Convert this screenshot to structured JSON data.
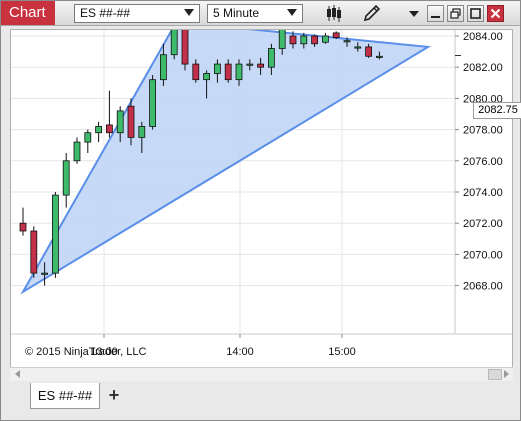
{
  "window": {
    "title": "Chart",
    "instrument_selector": {
      "value": "ES ##-##"
    },
    "interval_selector": {
      "value": "5 Minute"
    },
    "toolbar": {
      "bar_type_icon": "candlestick-icon",
      "drawing_tool_icon": "pencil-icon",
      "menu_icon": "chevron-down-icon"
    },
    "window_controls": [
      "minimize-icon",
      "restore-icon",
      "maximize-icon",
      "close-icon"
    ]
  },
  "chart": {
    "copyright": "© 2015 NinjaTrader, LLC",
    "current_price": "2082.75",
    "colors": {
      "up": "#3dbb6b",
      "down": "#c2304a",
      "triangle_fill": "#bcd3f7",
      "triangle_stroke": "#5a8ee8",
      "accent": "#c8323e"
    }
  },
  "chart_data": {
    "type": "candlestick",
    "y_ticks": [
      "2084.00",
      "2082.00",
      "2080.00",
      "2078.00",
      "2076.00",
      "2074.00",
      "2072.00",
      "2070.00",
      "2068.00"
    ],
    "ylim": [
      2067.5,
      2085.0
    ],
    "x_ticks": [
      "13:00",
      "14:00",
      "15:00"
    ],
    "candles": [
      {
        "o": 2072.0,
        "h": 2073.0,
        "l": 2071.2,
        "c": 2071.5
      },
      {
        "o": 2071.5,
        "h": 2071.8,
        "l": 2068.5,
        "c": 2068.8
      },
      {
        "o": 2068.8,
        "h": 2069.5,
        "l": 2068.0,
        "c": 2068.8
      },
      {
        "o": 2068.8,
        "h": 2074.0,
        "l": 2068.5,
        "c": 2073.8
      },
      {
        "o": 2073.8,
        "h": 2076.5,
        "l": 2073.0,
        "c": 2076.0
      },
      {
        "o": 2076.0,
        "h": 2077.5,
        "l": 2075.8,
        "c": 2077.2
      },
      {
        "o": 2077.2,
        "h": 2078.0,
        "l": 2076.5,
        "c": 2077.8
      },
      {
        "o": 2077.8,
        "h": 2078.5,
        "l": 2077.2,
        "c": 2078.2
      },
      {
        "o": 2078.3,
        "h": 2080.5,
        "l": 2077.5,
        "c": 2077.8
      },
      {
        "o": 2077.8,
        "h": 2079.5,
        "l": 2077.2,
        "c": 2079.2
      },
      {
        "o": 2079.5,
        "h": 2080.0,
        "l": 2077.0,
        "c": 2077.5
      },
      {
        "o": 2077.5,
        "h": 2078.5,
        "l": 2076.5,
        "c": 2078.2
      },
      {
        "o": 2078.2,
        "h": 2081.5,
        "l": 2078.0,
        "c": 2081.2
      },
      {
        "o": 2081.2,
        "h": 2083.5,
        "l": 2080.8,
        "c": 2082.8
      },
      {
        "o": 2082.8,
        "h": 2085.0,
        "l": 2082.5,
        "c": 2084.8
      },
      {
        "o": 2084.5,
        "h": 2084.8,
        "l": 2081.8,
        "c": 2082.2
      },
      {
        "o": 2082.2,
        "h": 2082.5,
        "l": 2081.0,
        "c": 2081.2
      },
      {
        "o": 2081.2,
        "h": 2081.8,
        "l": 2080.0,
        "c": 2081.6
      },
      {
        "o": 2081.6,
        "h": 2082.5,
        "l": 2081.0,
        "c": 2082.2
      },
      {
        "o": 2082.2,
        "h": 2082.5,
        "l": 2081.0,
        "c": 2081.2
      },
      {
        "o": 2081.2,
        "h": 2082.5,
        "l": 2080.8,
        "c": 2082.2
      },
      {
        "o": 2082.2,
        "h": 2082.5,
        "l": 2081.8,
        "c": 2082.2
      },
      {
        "o": 2082.2,
        "h": 2082.6,
        "l": 2081.5,
        "c": 2082.0
      },
      {
        "o": 2082.0,
        "h": 2083.5,
        "l": 2081.5,
        "c": 2083.2
      },
      {
        "o": 2083.2,
        "h": 2085.0,
        "l": 2082.8,
        "c": 2084.8
      },
      {
        "o": 2084.0,
        "h": 2084.3,
        "l": 2083.2,
        "c": 2083.5
      },
      {
        "o": 2083.5,
        "h": 2084.2,
        "l": 2083.2,
        "c": 2084.0
      },
      {
        "o": 2084.0,
        "h": 2084.1,
        "l": 2083.3,
        "c": 2083.5
      },
      {
        "o": 2083.6,
        "h": 2084.2,
        "l": 2083.5,
        "c": 2084.0
      },
      {
        "o": 2084.2,
        "h": 2084.3,
        "l": 2083.8,
        "c": 2083.9
      },
      {
        "o": 2083.7,
        "h": 2083.9,
        "l": 2083.3,
        "c": 2083.7
      },
      {
        "o": 2083.3,
        "h": 2083.6,
        "l": 2083.0,
        "c": 2083.3
      },
      {
        "o": 2083.3,
        "h": 2083.5,
        "l": 2082.6,
        "c": 2082.7
      },
      {
        "o": 2082.7,
        "h": 2083.0,
        "l": 2082.5,
        "c": 2082.7
      }
    ],
    "triangle": [
      {
        "t": 0,
        "price": 2067.6
      },
      {
        "t": 14.2,
        "price": 2084.9
      },
      {
        "t": 37.5,
        "price": 2083.3
      }
    ]
  },
  "tabs": [
    {
      "label": "ES ##-##"
    }
  ],
  "tab_add_label": "+"
}
